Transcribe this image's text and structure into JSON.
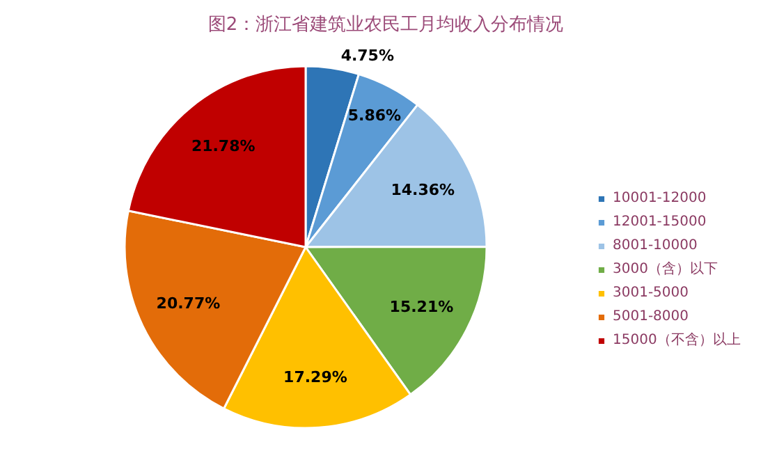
{
  "chart_data": {
    "type": "pie",
    "title": "图2：浙江省建筑业农民工月均收入分布情况",
    "categories": [
      "10001-12000",
      "12001-15000",
      "8001-10000",
      "3000（含）以下",
      "3001-5000",
      "5001-8000",
      "15000（不含）以上"
    ],
    "values": [
      4.75,
      5.86,
      14.36,
      15.21,
      17.29,
      20.77,
      21.78
    ],
    "colors": [
      "#2e75b6",
      "#5b9bd5",
      "#9dc3e6",
      "#70ad47",
      "#ffc000",
      "#e36c09",
      "#c00000"
    ],
    "value_labels": [
      "4.75%",
      "5.86%",
      "14.36%",
      "15.21%",
      "17.29%",
      "20.77%",
      "21.78%"
    ],
    "legend": "right"
  }
}
